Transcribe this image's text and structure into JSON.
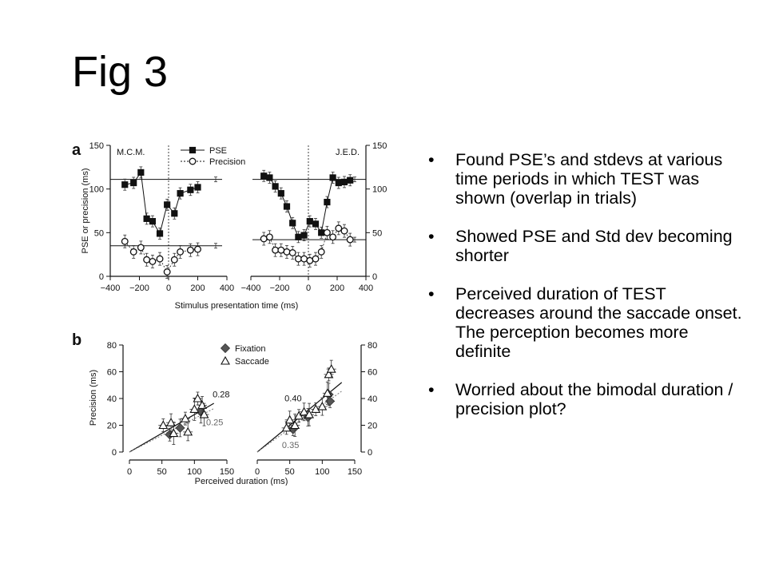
{
  "slide": {
    "title": "Fig 3",
    "bullet_symbol": "•",
    "bullets": [
      "Found PSE’s and stdevs at various time periods in which TEST was shown (overlap in trials)",
      "Showed PSE and Std dev becoming shorter",
      "Perceived duration of TEST decreases around the saccade onset. The perception becomes more definite",
      "Worried about the bimodal duration / precision plot?"
    ]
  },
  "chart_data": [
    {
      "panel": "a",
      "type": "line",
      "xlabel": "Stimulus presentation time (ms)",
      "ylabel": "PSE or precision (ms)",
      "xlim": [
        -400,
        400
      ],
      "ylim": [
        0,
        150
      ],
      "xticks": [
        -400,
        -200,
        0,
        200,
        400
      ],
      "xtick_labels": [
        "−400",
        "−200",
        "0",
        "200",
        "400"
      ],
      "yticks": [
        0,
        50,
        100,
        150
      ],
      "legend": [
        "PSE",
        "Precision"
      ],
      "legend_position": "top-center",
      "subplots": [
        {
          "subject": "M.C.M.",
          "series": [
            {
              "name": "PSE",
              "marker": "filled-square",
              "x": [
                -300,
                -240,
                -190,
                -150,
                -110,
                -60,
                -10,
                40,
                80,
                150,
                200
              ],
              "y": [
                105,
                107,
                119,
                66,
                63,
                49,
                82,
                72,
                95,
                99,
                102
              ],
              "ref": 111
            },
            {
              "name": "Precision",
              "marker": "open-circle",
              "x": [
                -300,
                -240,
                -190,
                -150,
                -110,
                -60,
                -10,
                40,
                80,
                150,
                200
              ],
              "y": [
                40,
                28,
                33,
                19,
                17,
                20,
                5,
                19,
                28,
                30,
                31
              ],
              "ref": 35
            }
          ]
        },
        {
          "subject": "J.E.D.",
          "series": [
            {
              "name": "PSE",
              "marker": "filled-square",
              "x": [
                -310,
                -270,
                -230,
                -190,
                -150,
                -110,
                -70,
                -30,
                10,
                50,
                90,
                130,
                170,
                210,
                250,
                290
              ],
              "y": [
                115,
                113,
                103,
                95,
                80,
                61,
                45,
                47,
                63,
                60,
                50,
                85,
                113,
                107,
                108,
                110
              ],
              "ref": 111
            },
            {
              "name": "Precision",
              "marker": "open-circle",
              "x": [
                -310,
                -270,
                -230,
                -190,
                -150,
                -110,
                -70,
                -30,
                10,
                50,
                90,
                130,
                170,
                210,
                250,
                290
              ],
              "y": [
                43,
                45,
                30,
                30,
                28,
                27,
                20,
                20,
                18,
                20,
                28,
                50,
                45,
                55,
                52,
                42
              ],
              "ref": 42
            }
          ]
        }
      ]
    },
    {
      "panel": "b",
      "type": "scatter",
      "xlabel": "Perceived duration (ms)",
      "ylabel": "Precision (ms)",
      "xlim": [
        0,
        150
      ],
      "ylim": [
        0,
        80
      ],
      "xticks": [
        0,
        50,
        100,
        150
      ],
      "yticks": [
        0,
        20,
        40,
        60,
        80
      ],
      "legend": [
        "Fixation",
        "Saccade"
      ],
      "legend_position": "top-left",
      "subplots": [
        {
          "series": [
            {
              "name": "Fixation",
              "marker": "filled-diamond",
              "x": [
                62,
                78,
                110
              ],
              "y": [
                13,
                18,
                30
              ]
            },
            {
              "name": "Saccade",
              "marker": "open-triangle",
              "x": [
                52,
                64,
                68,
                86,
                90,
                100,
                105,
                112,
                115
              ],
              "y": [
                20,
                22,
                14,
                25,
                15,
                32,
                40,
                35,
                28
              ]
            }
          ],
          "fit_lines": [
            {
              "label": "0.28",
              "slope": 0.28
            },
            {
              "label": "0.25",
              "slope": 0.25
            }
          ]
        },
        {
          "series": [
            {
              "name": "Fixation",
              "marker": "filled-diamond",
              "x": [
                55,
                78,
                110,
                112
              ],
              "y": [
                17,
                26,
                43,
                38
              ]
            },
            {
              "name": "Saccade",
              "marker": "open-triangle",
              "x": [
                45,
                50,
                58,
                64,
                72,
                80,
                90,
                100,
                108,
                110,
                114
              ],
              "y": [
                18,
                24,
                20,
                27,
                30,
                28,
                32,
                34,
                44,
                58,
                62
              ]
            }
          ],
          "fit_lines": [
            {
              "label": "0.40",
              "slope": 0.4
            },
            {
              "label": "0.35",
              "slope": 0.35
            }
          ]
        }
      ]
    }
  ]
}
